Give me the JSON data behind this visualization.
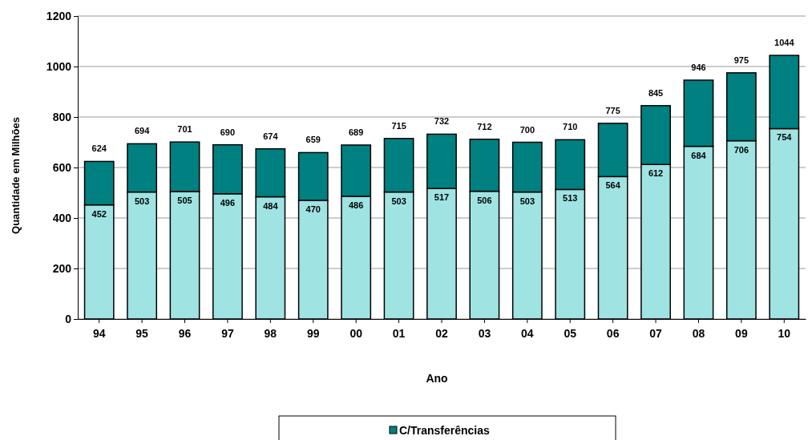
{
  "chart_data": {
    "type": "bar",
    "stacked": true,
    "xlabel": "Ano",
    "ylabel": "Quantidade em Milhões",
    "categories": [
      "94",
      "95",
      "96",
      "97",
      "98",
      "99",
      "00",
      "01",
      "02",
      "03",
      "04",
      "05",
      "06",
      "07",
      "08",
      "09",
      "10"
    ],
    "series": [
      {
        "color": "#9fe3e3",
        "values": [
          452,
          503,
          505,
          496,
          484,
          470,
          486,
          503,
          517,
          506,
          503,
          513,
          564,
          612,
          684,
          706,
          754
        ],
        "value_labels": [
          "452",
          "503",
          "505",
          "496",
          "484",
          "470",
          "486",
          "503",
          "517",
          "506",
          "503",
          "513",
          "564",
          "612",
          "684",
          "706",
          "754"
        ]
      },
      {
        "name": "C/Transferências",
        "color": "#008080",
        "values": [
          172,
          191,
          196,
          194,
          190,
          189,
          203,
          212,
          215,
          206,
          197,
          197,
          211,
          233,
          262,
          269,
          290
        ]
      }
    ],
    "totals": [
      "624",
      "694",
      "701",
      "690",
      "674",
      "659",
      "689",
      "715",
      "732",
      "712",
      "700",
      "710",
      "775",
      "845",
      "946",
      "975",
      "1044"
    ],
    "ylim": [
      0,
      1200
    ],
    "yticks": [
      0,
      200,
      400,
      600,
      800,
      1000,
      1200
    ],
    "grid": "y",
    "legend": "bottom"
  }
}
